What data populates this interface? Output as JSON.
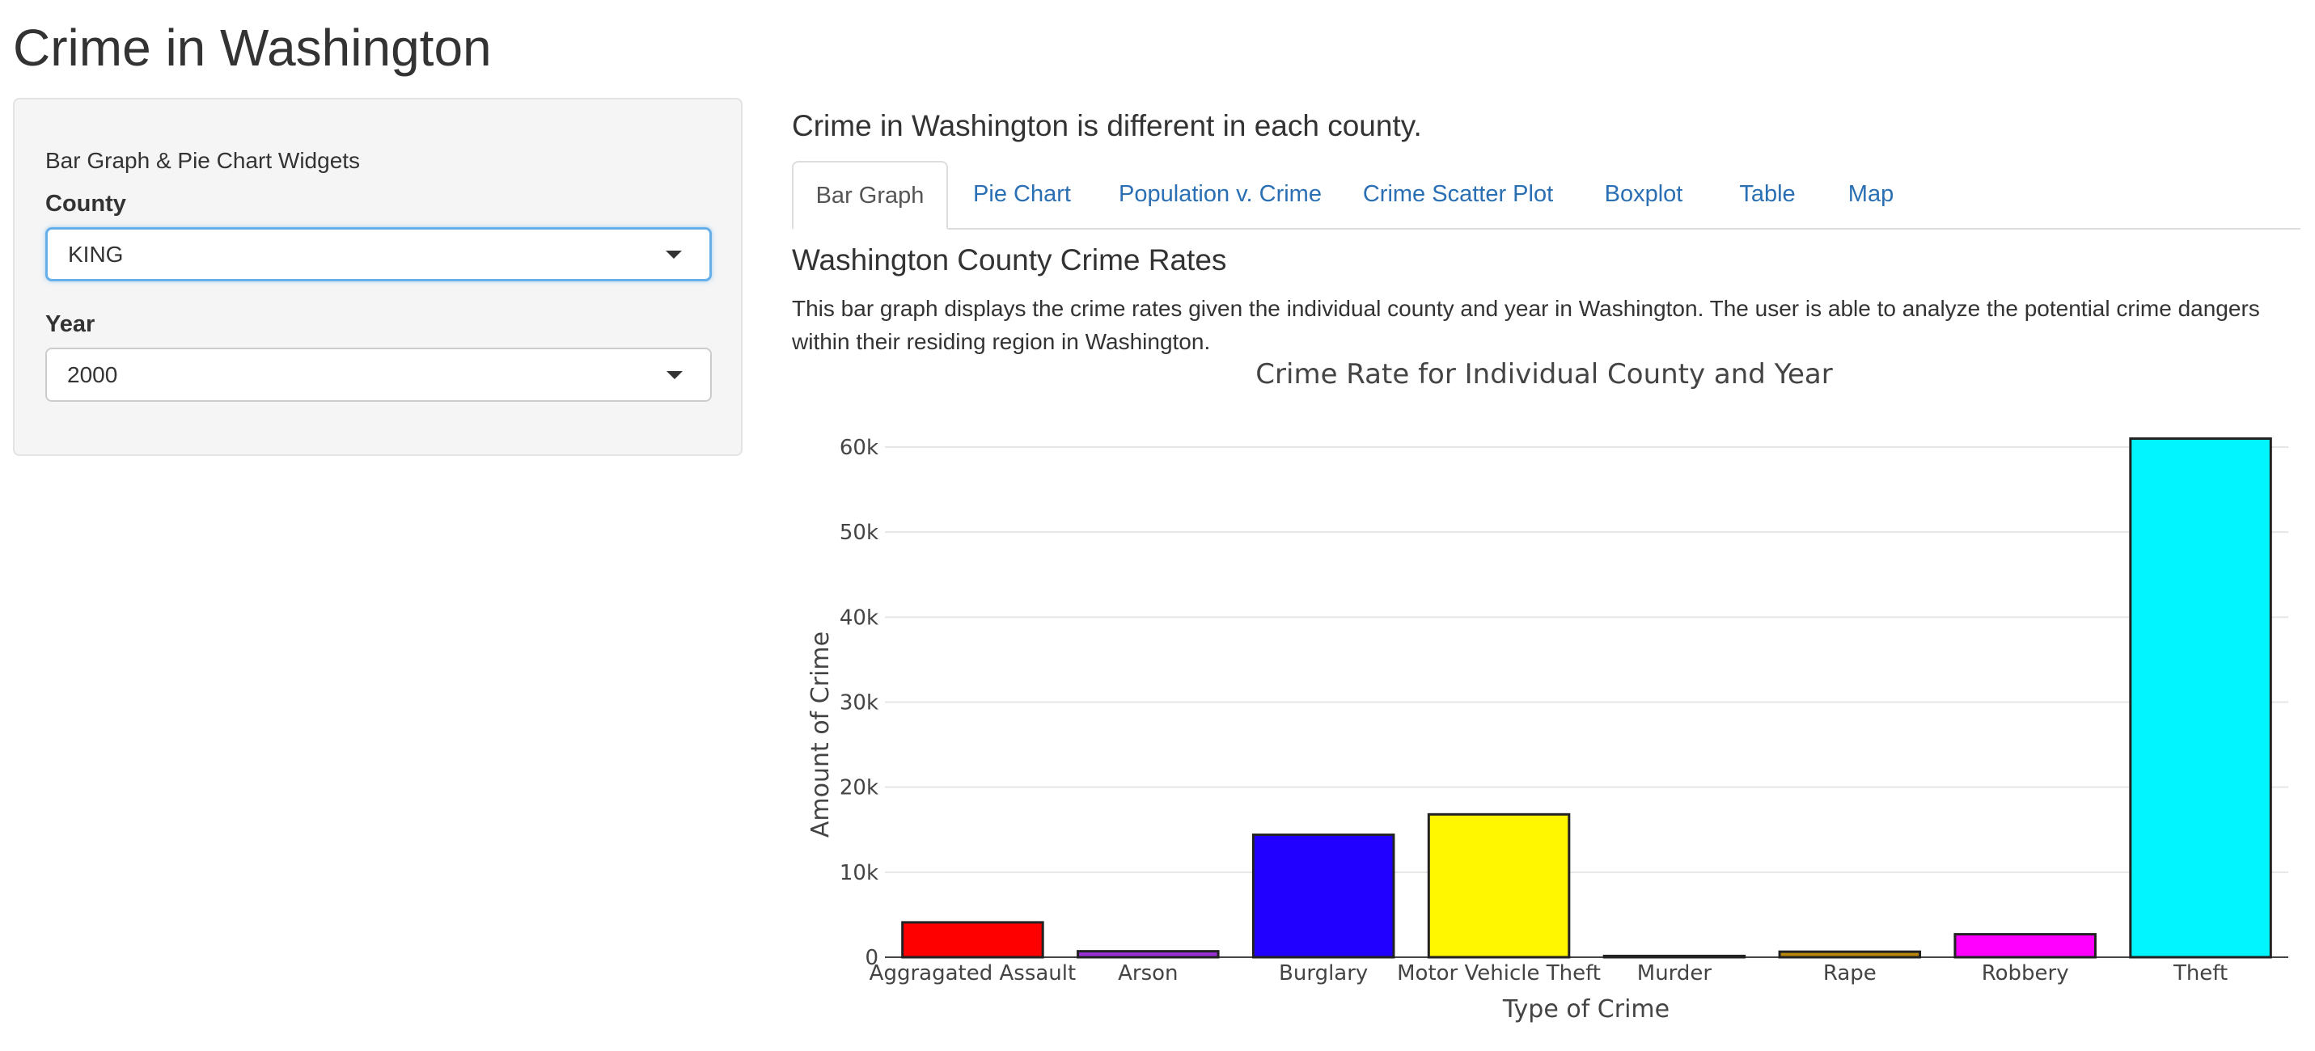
{
  "app": {
    "title": "Crime in Washington"
  },
  "sidebar": {
    "heading": "Bar Graph & Pie Chart Widgets",
    "county": {
      "label": "County",
      "value": "KING"
    },
    "year": {
      "label": "Year",
      "value": "2000"
    }
  },
  "main": {
    "heading": "Crime in Washington is different in each county.",
    "tabs": [
      {
        "label": "Bar Graph",
        "active": true
      },
      {
        "label": "Pie Chart"
      },
      {
        "label": "Population v. Crime"
      },
      {
        "label": "Crime Scatter Plot"
      },
      {
        "label": "Boxplot"
      },
      {
        "label": "Table"
      },
      {
        "label": "Map"
      }
    ],
    "section_title": "Washington County Crime Rates",
    "description": "This bar graph displays the crime rates given the individual county and year in Washington. The user is able to analyze the potential crime dangers within their residing region in Washington."
  },
  "chart_data": {
    "type": "bar",
    "title": "Crime Rate for Individual County and Year",
    "xlabel": "Type of Crime",
    "ylabel": "Amount of Crime",
    "categories": [
      "Aggragated Assault",
      "Arson",
      "Burglary",
      "Motor Vehicle Theft",
      "Murder",
      "Rape",
      "Robbery",
      "Theft"
    ],
    "values": [
      4100,
      700,
      14400,
      16800,
      150,
      650,
      2700,
      61000
    ],
    "colors": [
      "#ff0000",
      "#9b30d9",
      "#2200ff",
      "#fff700",
      "#333333",
      "#b8860b",
      "#ff00ff",
      "#00f5ff"
    ],
    "ylim": [
      0,
      60000
    ],
    "yticks": [
      0,
      10000,
      20000,
      30000,
      40000,
      50000,
      60000
    ],
    "ytick_labels": [
      "0",
      "10k",
      "20k",
      "30k",
      "40k",
      "50k",
      "60k"
    ],
    "grid": true,
    "legend": "none"
  }
}
